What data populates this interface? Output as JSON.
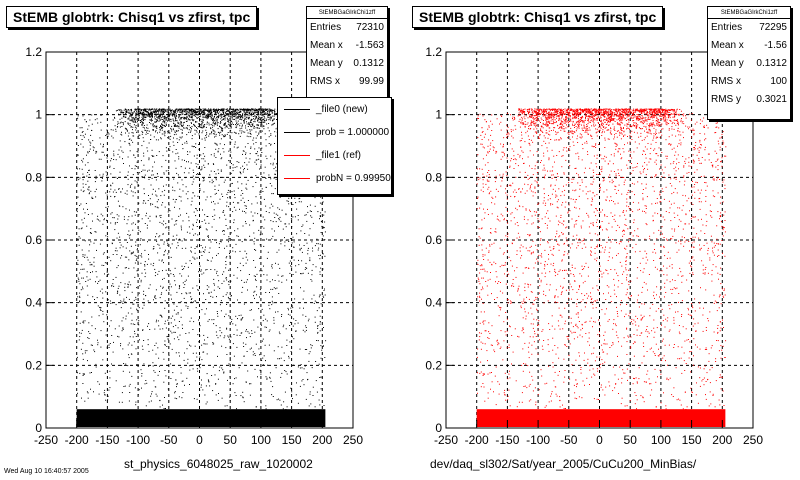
{
  "footer_note": "Wed Aug 10 16:40:57 2005",
  "panels": [
    {
      "id": "left",
      "title": "StEMB globtrk: Chisq1 vs zfirst, tpc",
      "stats": {
        "name": "StEMBGaGlrkChi1zff",
        "rows": [
          {
            "label": "Entries",
            "value": "72310"
          },
          {
            "label": "Mean x",
            "value": "-1.563"
          },
          {
            "label": "Mean y",
            "value": "0.1312"
          },
          {
            "label": "RMS x",
            "value": "99.99"
          }
        ]
      },
      "legend": [
        {
          "label": "_file0 (new)",
          "color": "#000000"
        },
        {
          "label": "prob = 1.000000",
          "color": "#000000"
        },
        {
          "label": "_file1 (ref)",
          "color": "#ff0000"
        },
        {
          "label": "probN = 0.999500",
          "color": "#ff0000"
        }
      ],
      "x_title": "st_physics_6048025_raw_1020002"
    },
    {
      "id": "right",
      "title": "StEMB globtrk: Chisq1 vs zfirst, tpc",
      "stats": {
        "name": "StEMBGaGlrkChi1zff",
        "rows": [
          {
            "label": "Entries",
            "value": "72295"
          },
          {
            "label": "Mean x",
            "value": "-1.56"
          },
          {
            "label": "Mean y",
            "value": "0.1312"
          },
          {
            "label": "RMS x",
            "value": "100"
          },
          {
            "label": "RMS y",
            "value": "0.3021"
          }
        ]
      },
      "x_title": "dev/daq_sl302/Sat/year_2005/CuCu200_MinBias/"
    }
  ],
  "chart_data": [
    {
      "type": "scatter",
      "title": "StEMB globtrk: Chisq1 vs zfirst, tpc",
      "xlabel": "st_physics_6048025_raw_1020002",
      "ylabel": "",
      "xlim": [
        -250,
        250
      ],
      "ylim": [
        0,
        1.2
      ],
      "x_ticks": [
        -250,
        -200,
        -150,
        -100,
        -50,
        0,
        50,
        100,
        150,
        200,
        250
      ],
      "y_ticks": [
        "0",
        "0.2",
        "0.4",
        "0.6",
        "0.8",
        "1",
        "1.2"
      ],
      "grid": true,
      "marker_color": "#000000",
      "entries": 72310,
      "mean_x": -1.563,
      "mean_y": 0.1312,
      "rms_x": 99.99,
      "data_range_x": [
        -200,
        205
      ],
      "dense_band_y": [
        0,
        0.06
      ],
      "dense_band_near_y": 1.0
    },
    {
      "type": "scatter",
      "title": "StEMB globtrk: Chisq1 vs zfirst, tpc",
      "xlabel": "dev/daq_sl302/Sat/year_2005/CuCu200_MinBias/",
      "ylabel": "",
      "xlim": [
        -250,
        250
      ],
      "ylim": [
        0,
        1.2
      ],
      "x_ticks": [
        -250,
        -200,
        -150,
        -100,
        -50,
        0,
        50,
        100,
        150,
        200,
        250
      ],
      "y_ticks": [
        "0",
        "0.2",
        "0.4",
        "0.6",
        "0.8",
        "1",
        "1.2"
      ],
      "grid": true,
      "marker_color": "#ff0000",
      "entries": 72295,
      "mean_x": -1.56,
      "mean_y": 0.1312,
      "rms_x": 100,
      "rms_y": 0.3021,
      "data_range_x": [
        -200,
        205
      ],
      "dense_band_y": [
        0,
        0.06
      ],
      "dense_band_near_y": 1.0
    }
  ]
}
